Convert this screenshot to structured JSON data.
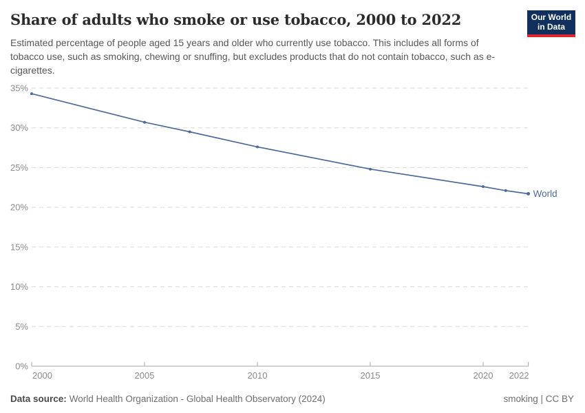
{
  "header": {
    "title": "Share of adults who smoke or use tobacco, 2000 to 2022",
    "subtitle": "Estimated percentage of people aged 15 years and older who currently use tobacco. This includes all forms of tobacco use, such as smoking, chewing or snuffing, but excludes products that do not contain tobacco, such as e-cigarettes.",
    "logo": {
      "line1": "Our World",
      "line2": "in Data"
    }
  },
  "chart_data": {
    "type": "line",
    "title": "Share of adults who smoke or use tobacco, 2000 to 2022",
    "x": [
      2000,
      2005,
      2007,
      2010,
      2015,
      2020,
      2021,
      2022
    ],
    "series": [
      {
        "name": "World",
        "color": "#4c6a9c",
        "values": [
          34.3,
          30.7,
          29.5,
          27.6,
          24.8,
          22.6,
          22.1,
          21.7
        ]
      }
    ],
    "x_ticks": [
      2000,
      2005,
      2010,
      2015,
      2020,
      2022
    ],
    "y_ticks": [
      0,
      5,
      10,
      15,
      20,
      25,
      30,
      35
    ],
    "y_tick_suffix": "%",
    "xlim": [
      2000,
      2022
    ],
    "ylim": [
      0,
      35
    ],
    "xlabel": "",
    "ylabel": "",
    "grid": "horizontal-dashed",
    "legend": "end-of-line-label",
    "end_label": "World"
  },
  "footer": {
    "source_label": "Data source:",
    "source_text": "World Health Organization - Global Health Observatory (2024)",
    "right_text": "smoking | CC BY"
  },
  "colors": {
    "line": "#4c6a9c",
    "title_text": "#2b2b2b",
    "subtitle_text": "#575757",
    "axis_text": "#8c8c8c",
    "grid": "#dadada",
    "axis_line": "#a5a5a5",
    "footer_text": "#6e6e6e",
    "footer_label": "#4a4a4a",
    "logo_bg": "#12305e",
    "logo_accent": "#dc2830",
    "logo_text": "#ffffff"
  }
}
